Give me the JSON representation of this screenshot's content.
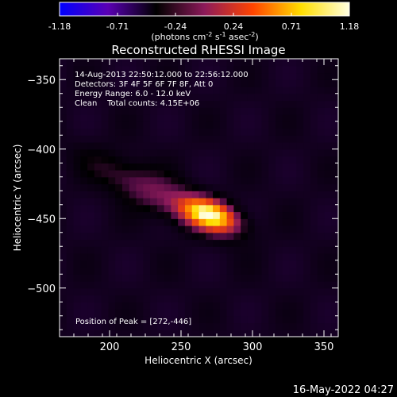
{
  "chart_data": {
    "type": "heatmap",
    "title": "Reconstructed RHESSI Image",
    "xlabel": "Heliocentric X (arcsec)",
    "ylabel": "Heliocentric Y (arcsec)",
    "xlim": [
      165,
      360
    ],
    "ylim": [
      -535,
      -335
    ],
    "x_ticks": [
      200,
      250,
      300,
      350
    ],
    "y_ticks": [
      -350,
      -400,
      -450,
      -500
    ],
    "colorbar": {
      "min": -1.18,
      "max": 1.18,
      "ticks": [
        "-1.18",
        "-0.71",
        "-0.24",
        "0.24",
        "0.71",
        "1.18"
      ],
      "unit_label": "(photons cm",
      "unit_sup1": "-2",
      "unit_mid": " s",
      "unit_sup2": "-1",
      "unit_mid2": " asec",
      "unit_sup3": "-2",
      "unit_end": ")",
      "colors": [
        "#0000ff",
        "#5a00b4",
        "#000000",
        "#8c1a5a",
        "#ff4400",
        "#ffdd00",
        "#ffffe0"
      ]
    },
    "annotations": [
      "14-Aug-2013 22:50:12.000 to 22:56:12.000",
      "Detectors: 3F 4F 5F 6F 7F 8F, Att 0",
      "Energy Range: 6.0 - 12.0 keV",
      "Clean    Total counts: 4.15E+06"
    ],
    "peak_label": "Position of Peak = [272,-446]",
    "peak": {
      "x": 272,
      "y": -446,
      "value": 1.18
    },
    "sources": [
      {
        "x": 270,
        "y": -447,
        "sx": 14,
        "sy": 7,
        "amp": 1.18,
        "angle": -20
      },
      {
        "x": 240,
        "y": -435,
        "sx": 30,
        "sy": 10,
        "amp": 0.3,
        "angle": -28
      },
      {
        "x": 205,
        "y": -418,
        "sx": 22,
        "sy": 9,
        "amp": 0.12,
        "angle": -30
      }
    ],
    "background": -0.15
  },
  "footer": {
    "timestamp": "16-May-2022 04:27"
  }
}
